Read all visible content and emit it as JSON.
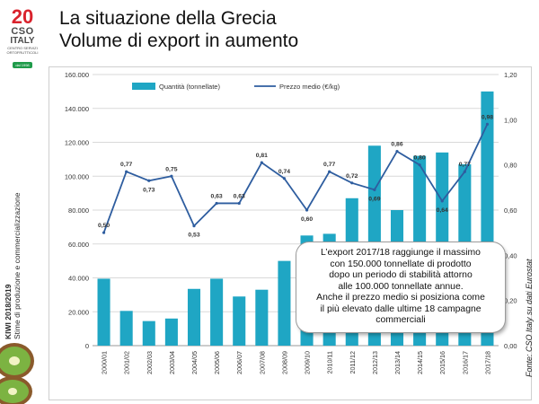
{
  "logo": {
    "big": "20",
    "cso": "CSO",
    "italy": "ITALY",
    "tagline": "CENTRO SERVIZI ORTOFRUTTICOLI",
    "since": "dal 1998"
  },
  "side": {
    "line1": "KIWI 2018/2019",
    "line2": "Stime di produzione e commercializzazione"
  },
  "title": {
    "line1": "La situazione della Grecia",
    "line2": "Volume di export in aumento"
  },
  "callout": {
    "line1": "L’export 2017/18 raggiunge il massimo",
    "line2": "con  150.000 tonnellate di prodotto",
    "line3": "dopo un periodo di stabilità attorno",
    "line4": "alle 100.000 tonnellate annue.",
    "line5": "Anche il prezzo medio si posiziona come",
    "line6": "il più elevato dalle ultime 18 campagne",
    "line7": "commerciali"
  },
  "source": "Fonte: CSO Italy  su dati Eurostat",
  "colors": {
    "bar": "#1fa6c4",
    "line": "#2e5d9f",
    "title": "#111111"
  },
  "chart_data": {
    "type": "bar",
    "categories": [
      "2000/01",
      "2001/02",
      "2002/03",
      "2003/04",
      "2004/05",
      "2005/06",
      "2006/07",
      "2007/08",
      "2008/09",
      "2009/10",
      "2010/11",
      "2011/12",
      "2012/13",
      "2013/14",
      "2014/15",
      "2015/16",
      "2016/17",
      "2017/18"
    ],
    "series": [
      {
        "name": "Quantità (tonnellate)",
        "type": "bar",
        "axis": "left",
        "values": [
          39500,
          20500,
          14500,
          16000,
          33500,
          39500,
          29000,
          33000,
          50000,
          65000,
          66000,
          87000,
          118000,
          80000,
          112000,
          114000,
          107000,
          150000
        ]
      },
      {
        "name": "Prezzo medio (€/kg)",
        "type": "line",
        "axis": "right",
        "values": [
          0.5,
          0.77,
          0.73,
          0.75,
          0.53,
          0.63,
          0.63,
          0.81,
          0.74,
          0.6,
          0.77,
          0.72,
          0.69,
          0.86,
          0.8,
          0.64,
          0.77,
          0.98
        ],
        "labels": [
          "0,50",
          "0,77",
          "0,73",
          "0,75",
          "0,53",
          "0,63",
          "0,63",
          "0,81",
          "0,74",
          "0,60",
          "0,77",
          "0,72",
          "0,69",
          "0,86",
          "0,80",
          "0,64",
          "0,77",
          "0,98"
        ]
      }
    ],
    "y_left": {
      "ylim": [
        0,
        160000
      ],
      "ticks": [
        "0",
        "20.000",
        "40.000",
        "60.000",
        "80.000",
        "100.000",
        "120.000",
        "140.000",
        "160.000"
      ]
    },
    "y_right": {
      "ylim": [
        0,
        1.2
      ],
      "ticks": [
        "0,00",
        "0,20",
        "0,40",
        "0,60",
        "0,80",
        "1,00",
        "1,20"
      ]
    },
    "grid": true,
    "legend": "top"
  }
}
